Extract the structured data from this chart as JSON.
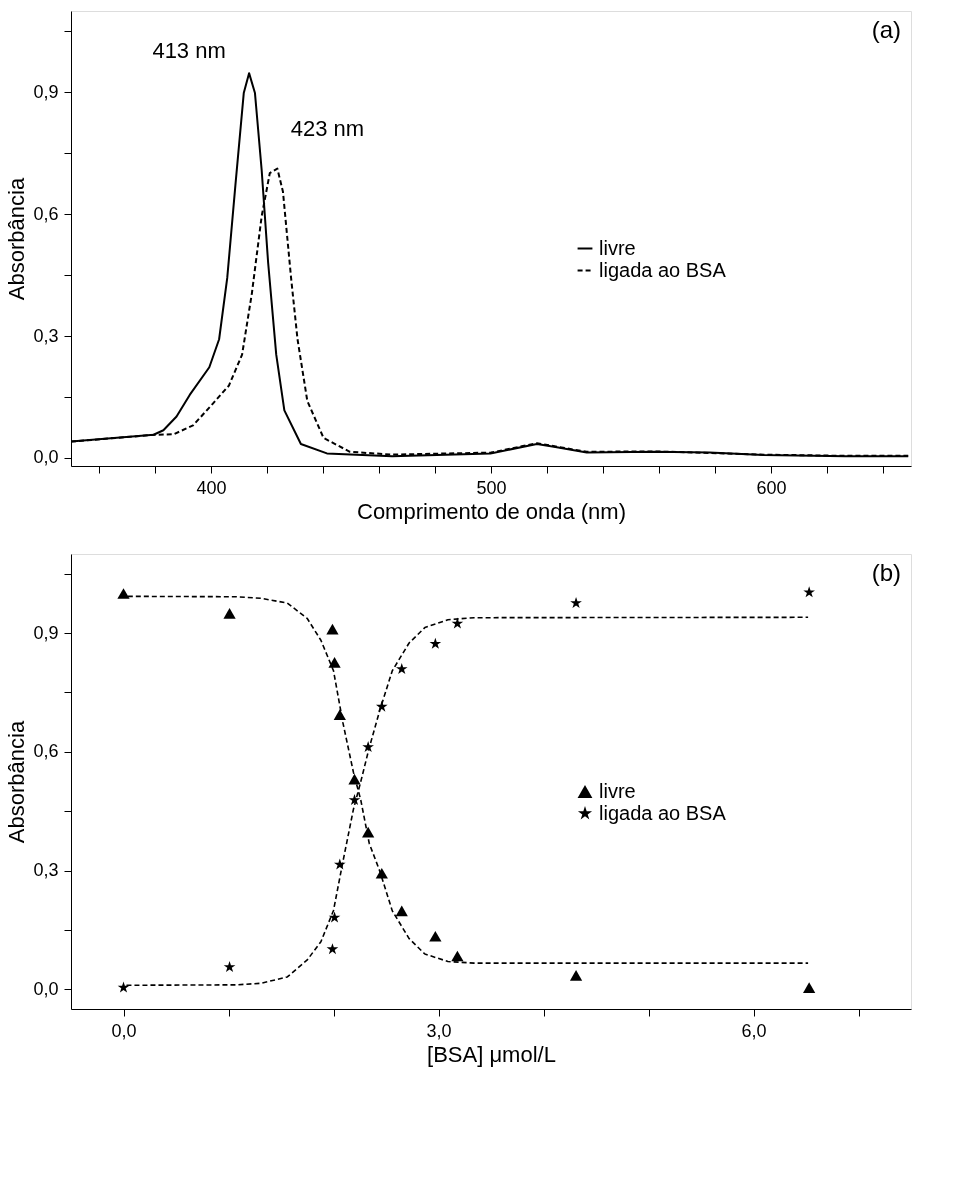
{
  "chart_data": [
    {
      "type": "line",
      "xlabel": "Comprimento de onda (nm)",
      "ylabel": "Absorbância",
      "legend": "right",
      "grid": false,
      "xlim": [
        350,
        650
      ],
      "ylim": [
        -0.02,
        1.1
      ],
      "xticks": [
        {
          "value": 360,
          "label": null
        },
        {
          "value": 380,
          "label": null
        },
        400,
        {
          "value": 420,
          "label": null
        },
        {
          "value": 440,
          "label": null
        },
        {
          "value": 460,
          "label": null
        },
        {
          "value": 480,
          "label": null
        },
        500,
        {
          "value": 520,
          "label": null
        },
        {
          "value": 540,
          "label": null
        },
        {
          "value": 560,
          "label": null
        },
        {
          "value": 580,
          "label": null
        },
        600,
        {
          "value": 620,
          "label": null
        },
        {
          "value": 640,
          "label": null
        }
      ],
      "yticks": [
        {
          "value": 0,
          "label": "0,0"
        },
        {
          "value": 0.15,
          "label": null
        },
        {
          "value": 0.3,
          "label": "0,3"
        },
        {
          "value": 0.45,
          "label": null
        },
        {
          "value": 0.6,
          "label": "0,6"
        },
        {
          "value": 0.75,
          "label": null
        },
        {
          "value": 0.9,
          "label": "0,9"
        },
        {
          "value": 1.05,
          "label": null
        }
      ],
      "annotations": [
        {
          "text": "413 nm",
          "x": 413.6,
          "y": 0.947
        },
        {
          "text": "423 nm",
          "x": 423.7,
          "y": 0.712
        },
        "(a)"
      ],
      "series": [
        {
          "name": "livre",
          "color": "#000000",
          "line_style": "solid",
          "x": [
            350,
            379.5,
            383,
            387.7,
            392.4,
            399.4,
            402.9,
            405.8,
            408.7,
            411.7,
            413.6,
            415.7,
            418.1,
            420.4,
            423.3,
            426.2,
            432.1,
            441.4,
            464.7,
            499.8,
            516.4,
            523,
            534.2,
            558.5,
            578,
            597.3,
            626.6,
            649
          ],
          "values": [
            0.04,
            0.057,
            0.068,
            0.102,
            0.155,
            0.223,
            0.292,
            0.443,
            0.67,
            0.898,
            0.947,
            0.898,
            0.708,
            0.481,
            0.254,
            0.117,
            0.034,
            0.011,
            0.004,
            0.011,
            0.034,
            0.027,
            0.013,
            0.015,
            0.013,
            0.007,
            0.004,
            0.004
          ]
        },
        {
          "name": "ligada ao BSA",
          "color": "#000000",
          "line_style": "dashed",
          "x": [
            350,
            380,
            386.6,
            393.6,
            400.6,
            406.4,
            411.1,
            414.6,
            418.1,
            421,
            423.7,
            425.7,
            428.6,
            430.9,
            434.4,
            440.2,
            449.6,
            464.7,
            500,
            516.4,
            534.2,
            558.5,
            578,
            597.3,
            626.6,
            649
          ],
          "values": [
            0.04,
            0.057,
            0.058,
            0.08,
            0.133,
            0.178,
            0.254,
            0.405,
            0.595,
            0.701,
            0.712,
            0.655,
            0.443,
            0.292,
            0.14,
            0.049,
            0.015,
            0.008,
            0.013,
            0.036,
            0.015,
            0.016,
            0.012,
            0.008,
            0.005,
            0.005
          ]
        }
      ]
    },
    {
      "type": "scatter",
      "xlabel": "[BSA] μmol/L",
      "ylabel": "Absorbância",
      "legend": "right",
      "grid": false,
      "xlim": [
        -0.5,
        7.5
      ],
      "ylim": [
        -0.05,
        1.1
      ],
      "xticks": [
        {
          "value": 0,
          "label": "0,0"
        },
        {
          "value": 1,
          "label": null
        },
        {
          "value": 2,
          "label": null
        },
        {
          "value": 3,
          "label": "3,0"
        },
        {
          "value": 4,
          "label": null
        },
        {
          "value": 5,
          "label": null
        },
        {
          "value": 6,
          "label": "6,0"
        },
        {
          "value": 7,
          "label": null
        }
      ],
      "yticks": [
        {
          "value": 0,
          "label": "0,0"
        },
        {
          "value": 0.15,
          "label": null
        },
        {
          "value": 0.3,
          "label": "0,3"
        },
        {
          "value": 0.45,
          "label": null
        },
        {
          "value": 0.6,
          "label": "0,6"
        },
        {
          "value": 0.75,
          "label": null
        },
        {
          "value": 0.9,
          "label": "0,9"
        },
        {
          "value": 1.05,
          "label": null
        }
      ],
      "annotations": [
        "(b)"
      ],
      "x": [
        0,
        1.01,
        1.99,
        2.01,
        2.06,
        2.2,
        2.33,
        2.46,
        2.65,
        2.97,
        3.18,
        4.31,
        6.53
      ],
      "series": [
        {
          "name": "livre",
          "color": "#000000",
          "marker": "triangle",
          "values": [
            1.0,
            0.95,
            0.91,
            0.826,
            0.694,
            0.531,
            0.397,
            0.293,
            0.198,
            0.134,
            0.084,
            0.035,
            0.004
          ]
        },
        {
          "name": "ligada ao BSA",
          "color": "#000000",
          "marker": "star",
          "values": [
            0.004,
            0.056,
            0.101,
            0.181,
            0.315,
            0.478,
            0.612,
            0.714,
            0.809,
            0.873,
            0.924,
            0.976,
            1.003
          ]
        },
        {
          "type": "line",
          "color": "#000000",
          "line_style": "dashed",
          "x": [
            0,
            1.07,
            1.31,
            1.56,
            1.75,
            1.88,
            2.0,
            2.09,
            2.19,
            2.26,
            2.34,
            2.44,
            2.56,
            2.72,
            2.87,
            3.09,
            3.34,
            6.52
          ],
          "values": [
            0.993,
            0.992,
            0.988,
            0.976,
            0.937,
            0.882,
            0.805,
            0.673,
            0.548,
            0.478,
            0.369,
            0.299,
            0.198,
            0.128,
            0.089,
            0.07,
            0.066,
            0.066
          ]
        },
        {
          "type": "line",
          "color": "#000000",
          "line_style": "dashed",
          "x": [
            0,
            1.07,
            1.31,
            1.56,
            1.75,
            1.88,
            2.0,
            2.09,
            2.19,
            2.26,
            2.34,
            2.44,
            2.56,
            2.72,
            2.87,
            3.09,
            3.34,
            6.52
          ],
          "values": [
            0.01,
            0.011,
            0.015,
            0.031,
            0.074,
            0.12,
            0.199,
            0.323,
            0.455,
            0.525,
            0.61,
            0.704,
            0.805,
            0.875,
            0.914,
            0.934,
            0.939,
            0.94
          ]
        }
      ]
    }
  ]
}
